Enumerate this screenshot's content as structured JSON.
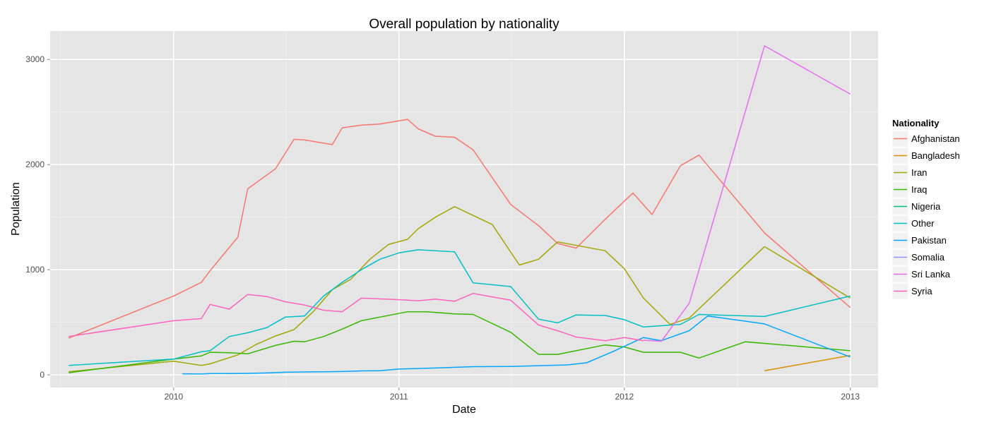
{
  "chart_data": {
    "type": "line",
    "title": "Overall population by nationality",
    "xlabel": "Date",
    "ylabel": "Population",
    "x_ticks": [
      "2010",
      "2011",
      "2012",
      "2013"
    ],
    "y_ticks": [
      "0",
      "1000",
      "2000",
      "3000"
    ],
    "xlim": [
      "2009-06-15",
      "2013-02-15"
    ],
    "ylim": [
      -120,
      3270
    ],
    "grid": true,
    "legend": {
      "title": "Nationality",
      "placement": "right"
    },
    "series": [
      {
        "name": "Afghanistan",
        "color": "#F8766D",
        "points": [
          [
            "2009-07-15",
            350
          ],
          [
            "2010-01-01",
            750
          ],
          [
            "2010-02-15",
            880
          ],
          [
            "2010-03-01",
            990
          ],
          [
            "2010-04-15",
            1310
          ],
          [
            "2010-05-01",
            1770
          ],
          [
            "2010-06-15",
            1960
          ],
          [
            "2010-07-15",
            2240
          ],
          [
            "2010-08-01",
            2235
          ],
          [
            "2010-09-15",
            2190
          ],
          [
            "2010-10-01",
            2350
          ],
          [
            "2010-11-01",
            2375
          ],
          [
            "2010-12-01",
            2385
          ],
          [
            "2011-01-15",
            2430
          ],
          [
            "2011-02-01",
            2340
          ],
          [
            "2011-03-01",
            2270
          ],
          [
            "2011-04-01",
            2260
          ],
          [
            "2011-05-01",
            2140
          ],
          [
            "2011-07-01",
            1620
          ],
          [
            "2011-08-15",
            1420
          ],
          [
            "2011-09-15",
            1250
          ],
          [
            "2011-10-15",
            1205
          ],
          [
            "2011-12-01",
            1480
          ],
          [
            "2012-01-15",
            1730
          ],
          [
            "2012-02-15",
            1525
          ],
          [
            "2012-04-01",
            1990
          ],
          [
            "2012-05-01",
            2090
          ],
          [
            "2012-08-15",
            1350
          ],
          [
            "2013-01-01",
            640
          ]
        ]
      },
      {
        "name": "Bangladesh",
        "color": "#D89000",
        "points": [
          [
            "2012-08-15",
            40
          ],
          [
            "2013-01-01",
            185
          ]
        ]
      },
      {
        "name": "Iran",
        "color": "#A3A500",
        "points": [
          [
            "2009-07-15",
            30
          ],
          [
            "2010-01-01",
            130
          ],
          [
            "2010-02-15",
            90
          ],
          [
            "2010-03-01",
            105
          ],
          [
            "2010-04-15",
            190
          ],
          [
            "2010-05-15",
            290
          ],
          [
            "2010-06-15",
            370
          ],
          [
            "2010-07-15",
            430
          ],
          [
            "2010-08-15",
            600
          ],
          [
            "2010-09-15",
            810
          ],
          [
            "2010-10-15",
            910
          ],
          [
            "2010-11-15",
            1100
          ],
          [
            "2010-12-15",
            1240
          ],
          [
            "2011-01-15",
            1290
          ],
          [
            "2011-02-01",
            1390
          ],
          [
            "2011-03-01",
            1500
          ],
          [
            "2011-04-01",
            1600
          ],
          [
            "2011-06-01",
            1430
          ],
          [
            "2011-07-15",
            1045
          ],
          [
            "2011-08-15",
            1100
          ],
          [
            "2011-09-15",
            1265
          ],
          [
            "2011-12-01",
            1180
          ],
          [
            "2012-01-01",
            1010
          ],
          [
            "2012-02-01",
            730
          ],
          [
            "2012-03-15",
            480
          ],
          [
            "2012-04-15",
            540
          ],
          [
            "2012-08-15",
            1220
          ],
          [
            "2013-01-01",
            730
          ]
        ]
      },
      {
        "name": "Iraq",
        "color": "#39B600",
        "points": [
          [
            "2009-07-15",
            20
          ],
          [
            "2010-01-01",
            150
          ],
          [
            "2010-02-15",
            180
          ],
          [
            "2010-03-01",
            215
          ],
          [
            "2010-04-01",
            210
          ],
          [
            "2010-05-01",
            200
          ],
          [
            "2010-06-15",
            280
          ],
          [
            "2010-07-15",
            320
          ],
          [
            "2010-08-01",
            315
          ],
          [
            "2010-09-01",
            365
          ],
          [
            "2010-10-01",
            435
          ],
          [
            "2010-11-01",
            515
          ],
          [
            "2011-01-15",
            600
          ],
          [
            "2011-02-15",
            600
          ],
          [
            "2011-04-01",
            580
          ],
          [
            "2011-05-01",
            575
          ],
          [
            "2011-07-01",
            405
          ],
          [
            "2011-08-15",
            195
          ],
          [
            "2011-09-15",
            195
          ],
          [
            "2011-12-01",
            285
          ],
          [
            "2012-01-01",
            265
          ],
          [
            "2012-02-01",
            215
          ],
          [
            "2012-04-01",
            215
          ],
          [
            "2012-05-01",
            160
          ],
          [
            "2012-07-15",
            315
          ],
          [
            "2013-01-01",
            230
          ]
        ]
      },
      {
        "name": "Other",
        "color": "#00BFC4",
        "points": [
          [
            "2009-07-15",
            90
          ],
          [
            "2010-01-01",
            150
          ],
          [
            "2010-02-15",
            220
          ],
          [
            "2010-03-01",
            230
          ],
          [
            "2010-04-01",
            365
          ],
          [
            "2010-05-01",
            400
          ],
          [
            "2010-06-01",
            450
          ],
          [
            "2010-07-01",
            550
          ],
          [
            "2010-08-01",
            560
          ],
          [
            "2010-09-01",
            750
          ],
          [
            "2010-10-01",
            880
          ],
          [
            "2010-11-01",
            1000
          ],
          [
            "2010-12-01",
            1100
          ],
          [
            "2011-01-01",
            1160
          ],
          [
            "2011-02-01",
            1190
          ],
          [
            "2011-03-01",
            1180
          ],
          [
            "2011-04-01",
            1170
          ],
          [
            "2011-05-01",
            875
          ],
          [
            "2011-07-01",
            840
          ],
          [
            "2011-08-15",
            530
          ],
          [
            "2011-09-15",
            495
          ],
          [
            "2011-10-15",
            570
          ],
          [
            "2011-12-01",
            565
          ],
          [
            "2012-01-01",
            525
          ],
          [
            "2012-02-01",
            455
          ],
          [
            "2012-04-01",
            480
          ],
          [
            "2012-05-01",
            575
          ],
          [
            "2012-08-15",
            555
          ],
          [
            "2013-01-01",
            750
          ]
        ]
      },
      {
        "name": "Pakistan",
        "color": "#00A5FF",
        "points": [
          [
            "2010-01-15",
            10
          ],
          [
            "2010-02-15",
            8
          ],
          [
            "2010-03-01",
            12
          ],
          [
            "2010-04-01",
            12
          ],
          [
            "2010-05-01",
            14
          ],
          [
            "2010-06-01",
            18
          ],
          [
            "2010-07-01",
            25
          ],
          [
            "2010-08-01",
            28
          ],
          [
            "2010-09-01",
            30
          ],
          [
            "2010-10-01",
            32
          ],
          [
            "2010-11-01",
            38
          ],
          [
            "2010-12-01",
            40
          ],
          [
            "2011-01-01",
            55
          ],
          [
            "2011-03-01",
            65
          ],
          [
            "2011-05-01",
            78
          ],
          [
            "2011-07-01",
            80
          ],
          [
            "2011-09-01",
            90
          ],
          [
            "2011-10-01",
            95
          ],
          [
            "2011-11-01",
            115
          ],
          [
            "2011-12-15",
            225
          ],
          [
            "2012-02-01",
            355
          ],
          [
            "2012-03-01",
            325
          ],
          [
            "2012-04-15",
            420
          ],
          [
            "2012-05-15",
            560
          ],
          [
            "2012-08-15",
            485
          ],
          [
            "2013-01-01",
            170
          ]
        ]
      },
      {
        "name": "Sri Lanka",
        "color": "#E76BF3",
        "points": [
          [
            "2012-02-01",
            330
          ],
          [
            "2012-03-01",
            320
          ],
          [
            "2012-04-15",
            680
          ],
          [
            "2012-08-15",
            3130
          ],
          [
            "2013-01-01",
            2670
          ]
        ]
      },
      {
        "name": "Syria",
        "color": "#FF62BC",
        "points": [
          [
            "2009-07-15",
            365
          ],
          [
            "2010-01-01",
            515
          ],
          [
            "2010-02-15",
            535
          ],
          [
            "2010-03-01",
            670
          ],
          [
            "2010-04-01",
            625
          ],
          [
            "2010-05-01",
            765
          ],
          [
            "2010-06-01",
            745
          ],
          [
            "2010-07-01",
            695
          ],
          [
            "2010-08-01",
            665
          ],
          [
            "2010-09-01",
            615
          ],
          [
            "2010-10-01",
            600
          ],
          [
            "2010-11-01",
            730
          ],
          [
            "2011-01-01",
            715
          ],
          [
            "2011-02-01",
            705
          ],
          [
            "2011-03-01",
            720
          ],
          [
            "2011-04-01",
            700
          ],
          [
            "2011-05-01",
            775
          ],
          [
            "2011-07-01",
            710
          ],
          [
            "2011-08-15",
            475
          ],
          [
            "2011-09-15",
            420
          ],
          [
            "2011-10-15",
            360
          ],
          [
            "2011-12-01",
            325
          ],
          [
            "2012-01-01",
            355
          ],
          [
            "2012-02-01",
            325
          ]
        ]
      }
    ],
    "legend_entries": [
      {
        "name": "Afghanistan",
        "color": "#F8766D"
      },
      {
        "name": "Bangladesh",
        "color": "#D89000"
      },
      {
        "name": "Iran",
        "color": "#A3A500"
      },
      {
        "name": "Iraq",
        "color": "#39B600"
      },
      {
        "name": "Nigeria",
        "color": "#00BF7D"
      },
      {
        "name": "Other",
        "color": "#00BFC4"
      },
      {
        "name": "Pakistan",
        "color": "#00A5FF"
      },
      {
        "name": "Somalia",
        "color": "#9590FF"
      },
      {
        "name": "Sri Lanka",
        "color": "#E76BF3"
      },
      {
        "name": "Syria",
        "color": "#FF62BC"
      }
    ]
  }
}
